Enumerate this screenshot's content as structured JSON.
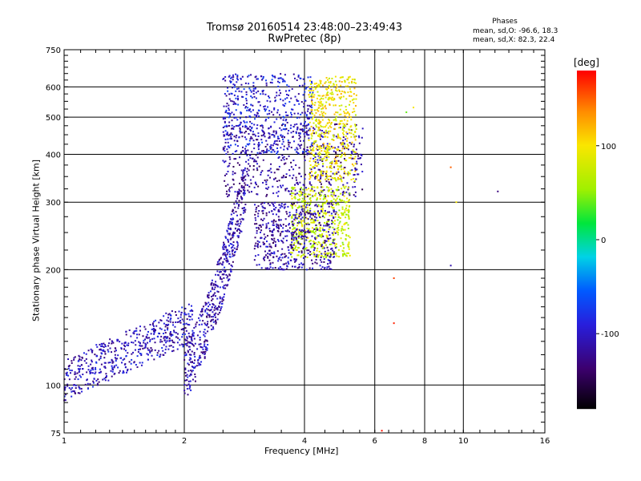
{
  "title_line1": "Tromsø 20160514 23:48:00–23:49:43",
  "title_line2": "RwPretec (8p)",
  "phase_block": {
    "heading": "Phases",
    "line_o": "mean, sd,O: -96.6, 18.3",
    "line_x": "mean, sd,X:  82.3, 22.4"
  },
  "colorbar": {
    "unit_label": "[deg]",
    "ticks": [
      "100",
      "0",
      "-100"
    ],
    "tick_values": [
      100,
      0,
      -100
    ],
    "range": [
      -180,
      180
    ]
  },
  "chart_data": {
    "type": "scatter",
    "xlabel": "Frequency [MHz]",
    "ylabel": "Stationary phase Virtual Height [km]",
    "xscale": "log",
    "yscale": "log",
    "xlim": [
      1,
      16
    ],
    "ylim": [
      75,
      750
    ],
    "x_ticks": [
      1,
      2,
      4,
      6,
      8,
      10,
      16
    ],
    "x_tick_labels": [
      "1",
      "2",
      "4",
      "6",
      "8",
      "10",
      "16"
    ],
    "y_ticks": [
      75,
      100,
      200,
      300,
      400,
      500,
      600,
      750
    ],
    "y_tick_labels": [
      "75",
      "100",
      "200",
      "300",
      "400",
      "500",
      "600",
      "750"
    ],
    "grid": true,
    "point_groups": [
      {
        "region": "low-E trace",
        "x_range": [
          1.0,
          2.1
        ],
        "y_range": [
          100,
          180
        ],
        "phase_deg": -105
      },
      {
        "region": "F rise",
        "x_range": [
          2.0,
          2.85
        ],
        "y_range": [
          100,
          330
        ],
        "phase_deg": -110
      },
      {
        "region": "F1 band",
        "x_range": [
          2.5,
          5.6
        ],
        "y_range": [
          310,
          480
        ],
        "phase_deg": -120
      },
      {
        "region": "upper F",
        "x_range": [
          2.5,
          4.2
        ],
        "y_range": [
          400,
          650
        ],
        "phase_deg": -95
      },
      {
        "region": "X-mode high",
        "x_range": [
          4.1,
          5.4
        ],
        "y_range": [
          340,
          640
        ],
        "phase_deg": 95
      },
      {
        "region": "X-mode lower",
        "x_range": [
          3.7,
          5.2
        ],
        "y_range": [
          215,
          330
        ],
        "phase_deg": 75
      },
      {
        "region": "spread F",
        "x_range": [
          3.0,
          4.8
        ],
        "y_range": [
          200,
          300
        ],
        "phase_deg": -115
      }
    ],
    "isolated_points": [
      {
        "x": 9.3,
        "y": 370,
        "phase_deg": 150
      },
      {
        "x": 9.6,
        "y": 300,
        "phase_deg": 100
      },
      {
        "x": 12.2,
        "y": 320,
        "phase_deg": -130
      },
      {
        "x": 6.7,
        "y": 190,
        "phase_deg": 160
      },
      {
        "x": 6.7,
        "y": 145,
        "phase_deg": 170
      },
      {
        "x": 6.25,
        "y": 76,
        "phase_deg": 175
      },
      {
        "x": 9.3,
        "y": 205,
        "phase_deg": -110
      },
      {
        "x": 7.5,
        "y": 530,
        "phase_deg": 100
      },
      {
        "x": 7.2,
        "y": 515,
        "phase_deg": 40
      }
    ]
  }
}
